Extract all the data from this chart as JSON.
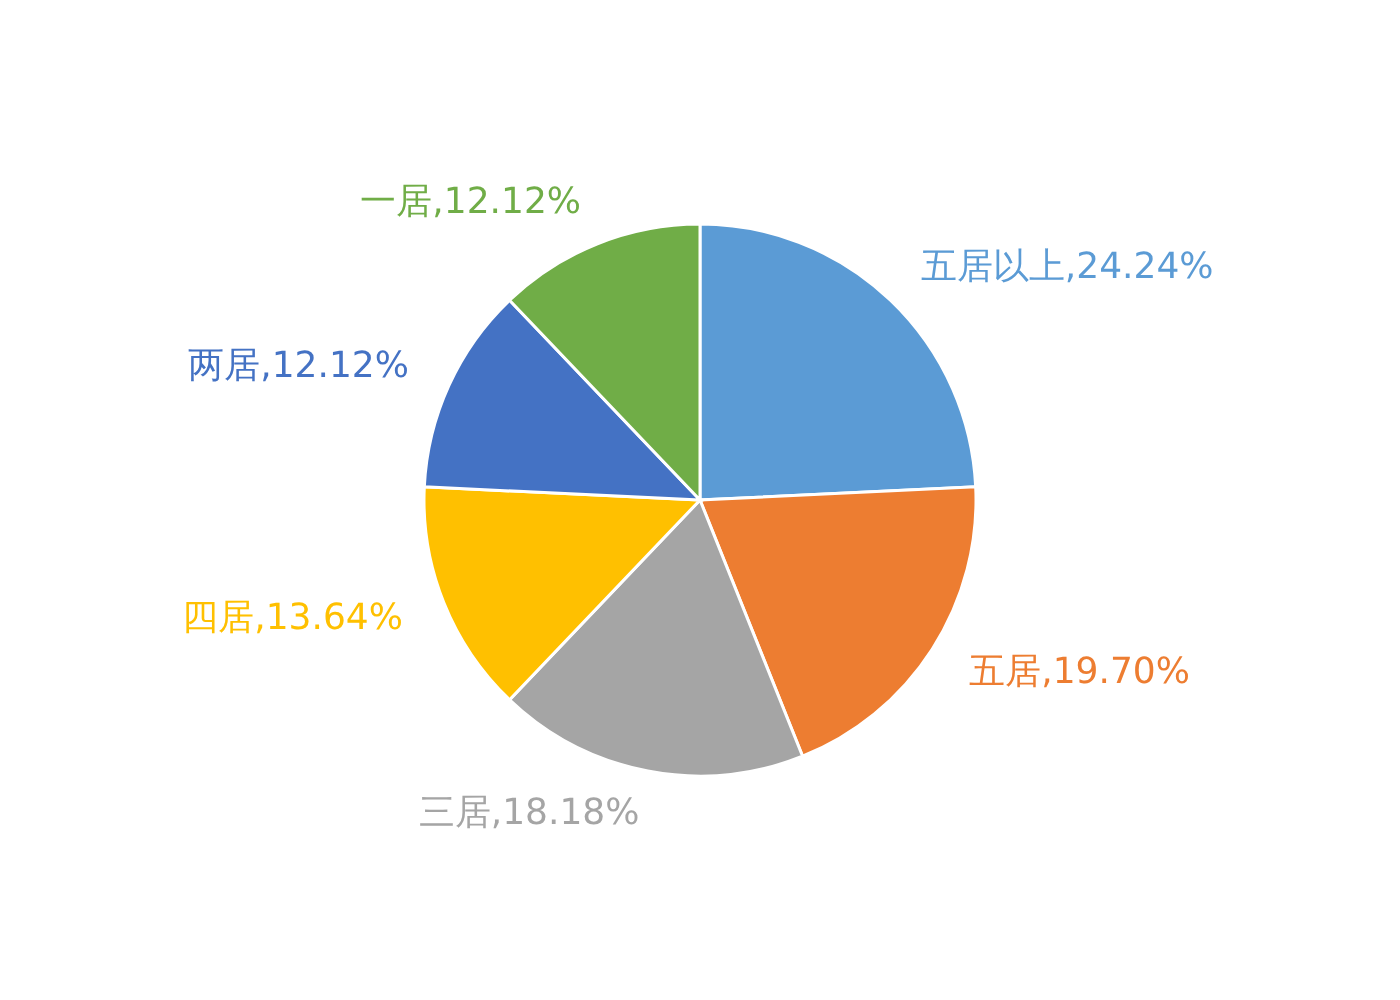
{
  "chart_data": {
    "type": "pie",
    "categories": [
      "五居以上",
      "五居",
      "三居",
      "四居",
      "两居",
      "一居"
    ],
    "values": [
      24.24,
      19.7,
      18.18,
      13.64,
      12.12,
      12.12
    ],
    "colors": [
      "#5b9bd5",
      "#ed7d31",
      "#a5a5a5",
      "#ffc000",
      "#4472c4",
      "#70ad47"
    ],
    "value_labels": [
      "24.24%",
      "19.70%",
      "18.18%",
      "13.64%",
      "12.12%",
      "12.12%"
    ]
  }
}
